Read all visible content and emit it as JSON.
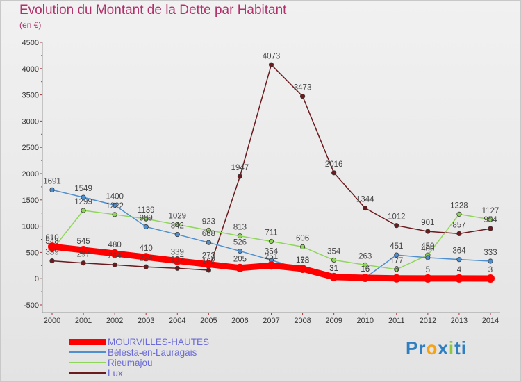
{
  "header": {
    "title": "Evolution du Montant de la Dette par Habitant",
    "subtitle": "(en €)"
  },
  "logo": {
    "parts": [
      {
        "text": "Pr",
        "color": "#2e7fc2"
      },
      {
        "text": "o",
        "color": "#f5a21b"
      },
      {
        "text": "x",
        "color": "#2e7fc2"
      },
      {
        "text": "i",
        "color": "#8dc63f"
      },
      {
        "text": "ti",
        "color": "#2e7fc2"
      }
    ]
  },
  "chart_data": {
    "type": "line",
    "title": "Evolution du Montant de la Dette par Habitant",
    "subtitle": "(en €)",
    "xlabel": "",
    "ylabel": "",
    "categories": [
      "2000",
      "2001",
      "2002",
      "2003",
      "2004",
      "2005",
      "2006",
      "2007",
      "2008",
      "2009",
      "2010",
      "2011",
      "2012",
      "2013",
      "2014"
    ],
    "ylim": [
      -500,
      4500
    ],
    "yticks": [
      -500,
      0,
      500,
      1000,
      1500,
      2000,
      2500,
      3000,
      3500,
      4000,
      4500
    ],
    "grid": false,
    "legend_position": "bottom-left",
    "series": [
      {
        "name": "MOURVILLES-HAUTES",
        "color": "#ff0000",
        "values": [
          610,
          545,
          480,
          410,
          339,
          273,
          205,
          251,
          188,
          31,
          16,
          6,
          5,
          4,
          3
        ],
        "labels": true
      },
      {
        "name": "Bélesta-en-Lauragais",
        "color": "#4f8fce",
        "values": [
          1691,
          1549,
          1400,
          989,
          842,
          688,
          526,
          354,
          173,
          31,
          16,
          451,
          400,
          364,
          333
        ],
        "labels": true
      },
      {
        "name": "Rieumajou",
        "color": "#8fd55a",
        "values": [
          548,
          1299,
          1222,
          1139,
          1029,
          923,
          813,
          711,
          606,
          354,
          263,
          177,
          450,
          1228,
          1127
        ],
        "labels": true
      },
      {
        "name": "Lux",
        "color": "#6b1a1e",
        "values": [
          339,
          297,
          264,
          224,
          197,
          162,
          1947,
          4073,
          3473,
          2016,
          1344,
          1012,
          901,
          857,
          954
        ],
        "labels": true
      }
    ]
  }
}
